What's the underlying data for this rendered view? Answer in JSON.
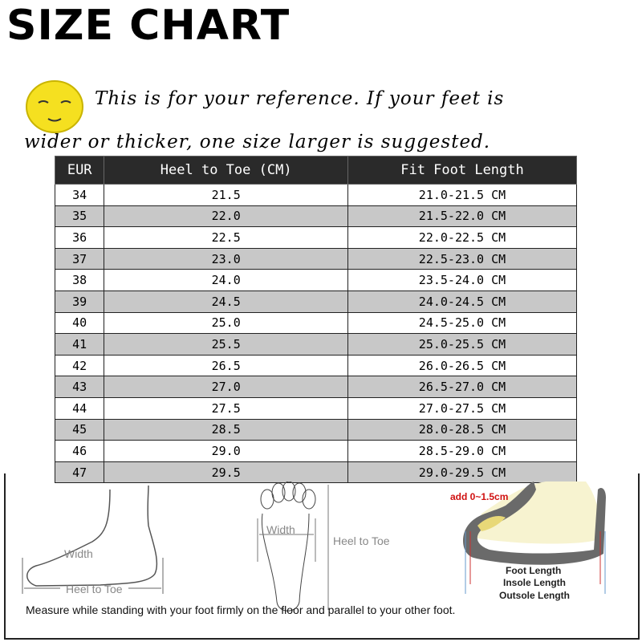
{
  "header": {
    "title": "SIZE CHART",
    "note_line1": "This is for your reference. If your feet is",
    "note_line2": "wider or thicker, one size larger is suggested."
  },
  "table": {
    "columns": [
      "EUR",
      "Heel to Toe (CM)",
      "Fit Foot Length"
    ],
    "rows": [
      [
        "34",
        "21.5",
        "21.0-21.5 CM"
      ],
      [
        "35",
        "22.0",
        "21.5-22.0 CM"
      ],
      [
        "36",
        "22.5",
        "22.0-22.5 CM"
      ],
      [
        "37",
        "23.0",
        "22.5-23.0 CM"
      ],
      [
        "38",
        "24.0",
        "23.5-24.0 CM"
      ],
      [
        "39",
        "24.5",
        "24.0-24.5 CM"
      ],
      [
        "40",
        "25.0",
        "24.5-25.0 CM"
      ],
      [
        "41",
        "25.5",
        "25.0-25.5 CM"
      ],
      [
        "42",
        "26.5",
        "26.0-26.5 CM"
      ],
      [
        "43",
        "27.0",
        "26.5-27.0 CM"
      ],
      [
        "44",
        "27.5",
        "27.0-27.5 CM"
      ],
      [
        "45",
        "28.5",
        "28.0-28.5 CM"
      ],
      [
        "46",
        "29.0",
        "28.5-29.0 CM"
      ],
      [
        "47",
        "29.5",
        "29.0-29.5 CM"
      ]
    ]
  },
  "diagrams": {
    "side": {
      "width": "Width",
      "heel_to_toe": "Heel to Toe"
    },
    "sole": {
      "width": "Width",
      "heel_to_toe": "Heel to Toe"
    },
    "shoe": {
      "add": "add 0~1.5cm",
      "foot_length": "Foot Length",
      "insole_length": "Insole Length",
      "outsole_length": "Outsole Length"
    },
    "caption": "Measure while standing with your foot firmly on the floor and parallel to your other foot."
  },
  "colors": {
    "header_bg": "#2a2a2a",
    "stripe": "#c8c8c8",
    "smiley": "#f5e020",
    "add_note": "#d01010"
  }
}
